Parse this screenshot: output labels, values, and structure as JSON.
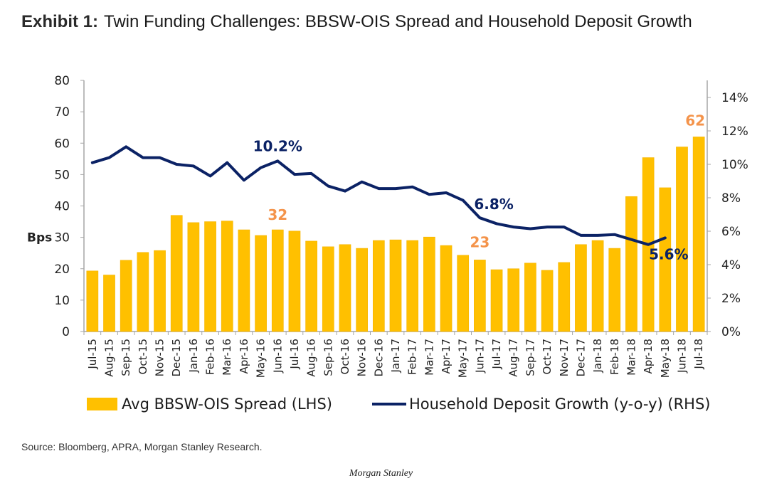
{
  "header": {
    "exhibit_label": "Exhibit 1:",
    "title": "Twin Funding Challenges: BBSW-OIS Spread and Household Deposit Growth"
  },
  "chart_data": {
    "type": "bar+line",
    "title": "Twin Funding Challenges: BBSW-OIS Spread and Household Deposit Growth",
    "categories": [
      "Jul-15",
      "Aug-15",
      "Sep-15",
      "Oct-15",
      "Nov-15",
      "Dec-15",
      "Jan-16",
      "Feb-16",
      "Mar-16",
      "Apr-16",
      "May-16",
      "Jun-16",
      "Jul-16",
      "Aug-16",
      "Sep-16",
      "Oct-16",
      "Nov-16",
      "Dec-16",
      "Jan-17",
      "Feb-17",
      "Mar-17",
      "Apr-17",
      "May-17",
      "Jun-17",
      "Jul-17",
      "Aug-17",
      "Sep-17",
      "Oct-17",
      "Nov-17",
      "Dec-17",
      "Jan-18",
      "Feb-18",
      "Mar-18",
      "Apr-18",
      "May-18",
      "Jun-18",
      "Jul-18"
    ],
    "series": [
      {
        "name": "Avg BBSW-OIS Spread (LHS)",
        "type": "bar",
        "axis": "left",
        "color": "#FFC000",
        "values": [
          19.3,
          18.0,
          22.7,
          25.2,
          25.8,
          37.0,
          34.7,
          35.0,
          35.2,
          32.4,
          30.6,
          32.4,
          32.0,
          28.8,
          27.0,
          27.7,
          26.5,
          29.0,
          29.2,
          29.0,
          30.1,
          27.4,
          24.3,
          22.8,
          19.7,
          20.0,
          21.8,
          19.5,
          22.0,
          27.7,
          29.0,
          26.5,
          43.0,
          55.4,
          45.8,
          58.8,
          62.0
        ]
      },
      {
        "name": "Household Deposit Growth (y-o-y) (RHS)",
        "type": "line",
        "axis": "right",
        "color": "#0B2265",
        "values": [
          10.1,
          10.4,
          11.05,
          10.4,
          10.4,
          10.0,
          9.9,
          9.3,
          10.1,
          9.05,
          9.8,
          10.2,
          9.4,
          9.45,
          8.7,
          8.4,
          8.95,
          8.55,
          8.55,
          8.65,
          8.2,
          8.3,
          7.85,
          6.8,
          6.45,
          6.25,
          6.15,
          6.25,
          6.25,
          5.75,
          5.75,
          5.8,
          5.5,
          5.2,
          5.6,
          null,
          null
        ]
      }
    ],
    "left_axis": {
      "label": "Bps",
      "min": 0,
      "max": 80,
      "ticks": [
        "0",
        "10",
        "20",
        "30",
        "40",
        "50",
        "60",
        "70",
        "80"
      ]
    },
    "right_axis": {
      "label": "",
      "min": 0,
      "max": 14,
      "ticks": [
        "0%",
        "2%",
        "4%",
        "6%",
        "8%",
        "10%",
        "12%",
        "14%"
      ]
    },
    "annotations": [
      {
        "text": "10.2%",
        "series": "line",
        "category": "Jun-16",
        "color": "#0B2265"
      },
      {
        "text": "6.8%",
        "series": "line",
        "category": "Jun-17",
        "color": "#0B2265"
      },
      {
        "text": "5.6%",
        "series": "line",
        "category": "May-18",
        "color": "#0B2265"
      },
      {
        "text": "32",
        "series": "bar",
        "category": "Jun-16",
        "color": "#F4934A"
      },
      {
        "text": "23",
        "series": "bar",
        "category": "Jun-17",
        "color": "#F4934A"
      },
      {
        "text": "62",
        "series": "bar",
        "category": "Jul-18",
        "color": "#F4934A"
      }
    ],
    "grid": false,
    "legend_position": "bottom"
  },
  "legend": {
    "bar_label": "Avg BBSW-OIS Spread (LHS)",
    "line_label": "Household Deposit Growth (y-o-y) (RHS)"
  },
  "source": "Source: Bloomberg, APRA, Morgan Stanley Research.",
  "footer": "Morgan Stanley"
}
